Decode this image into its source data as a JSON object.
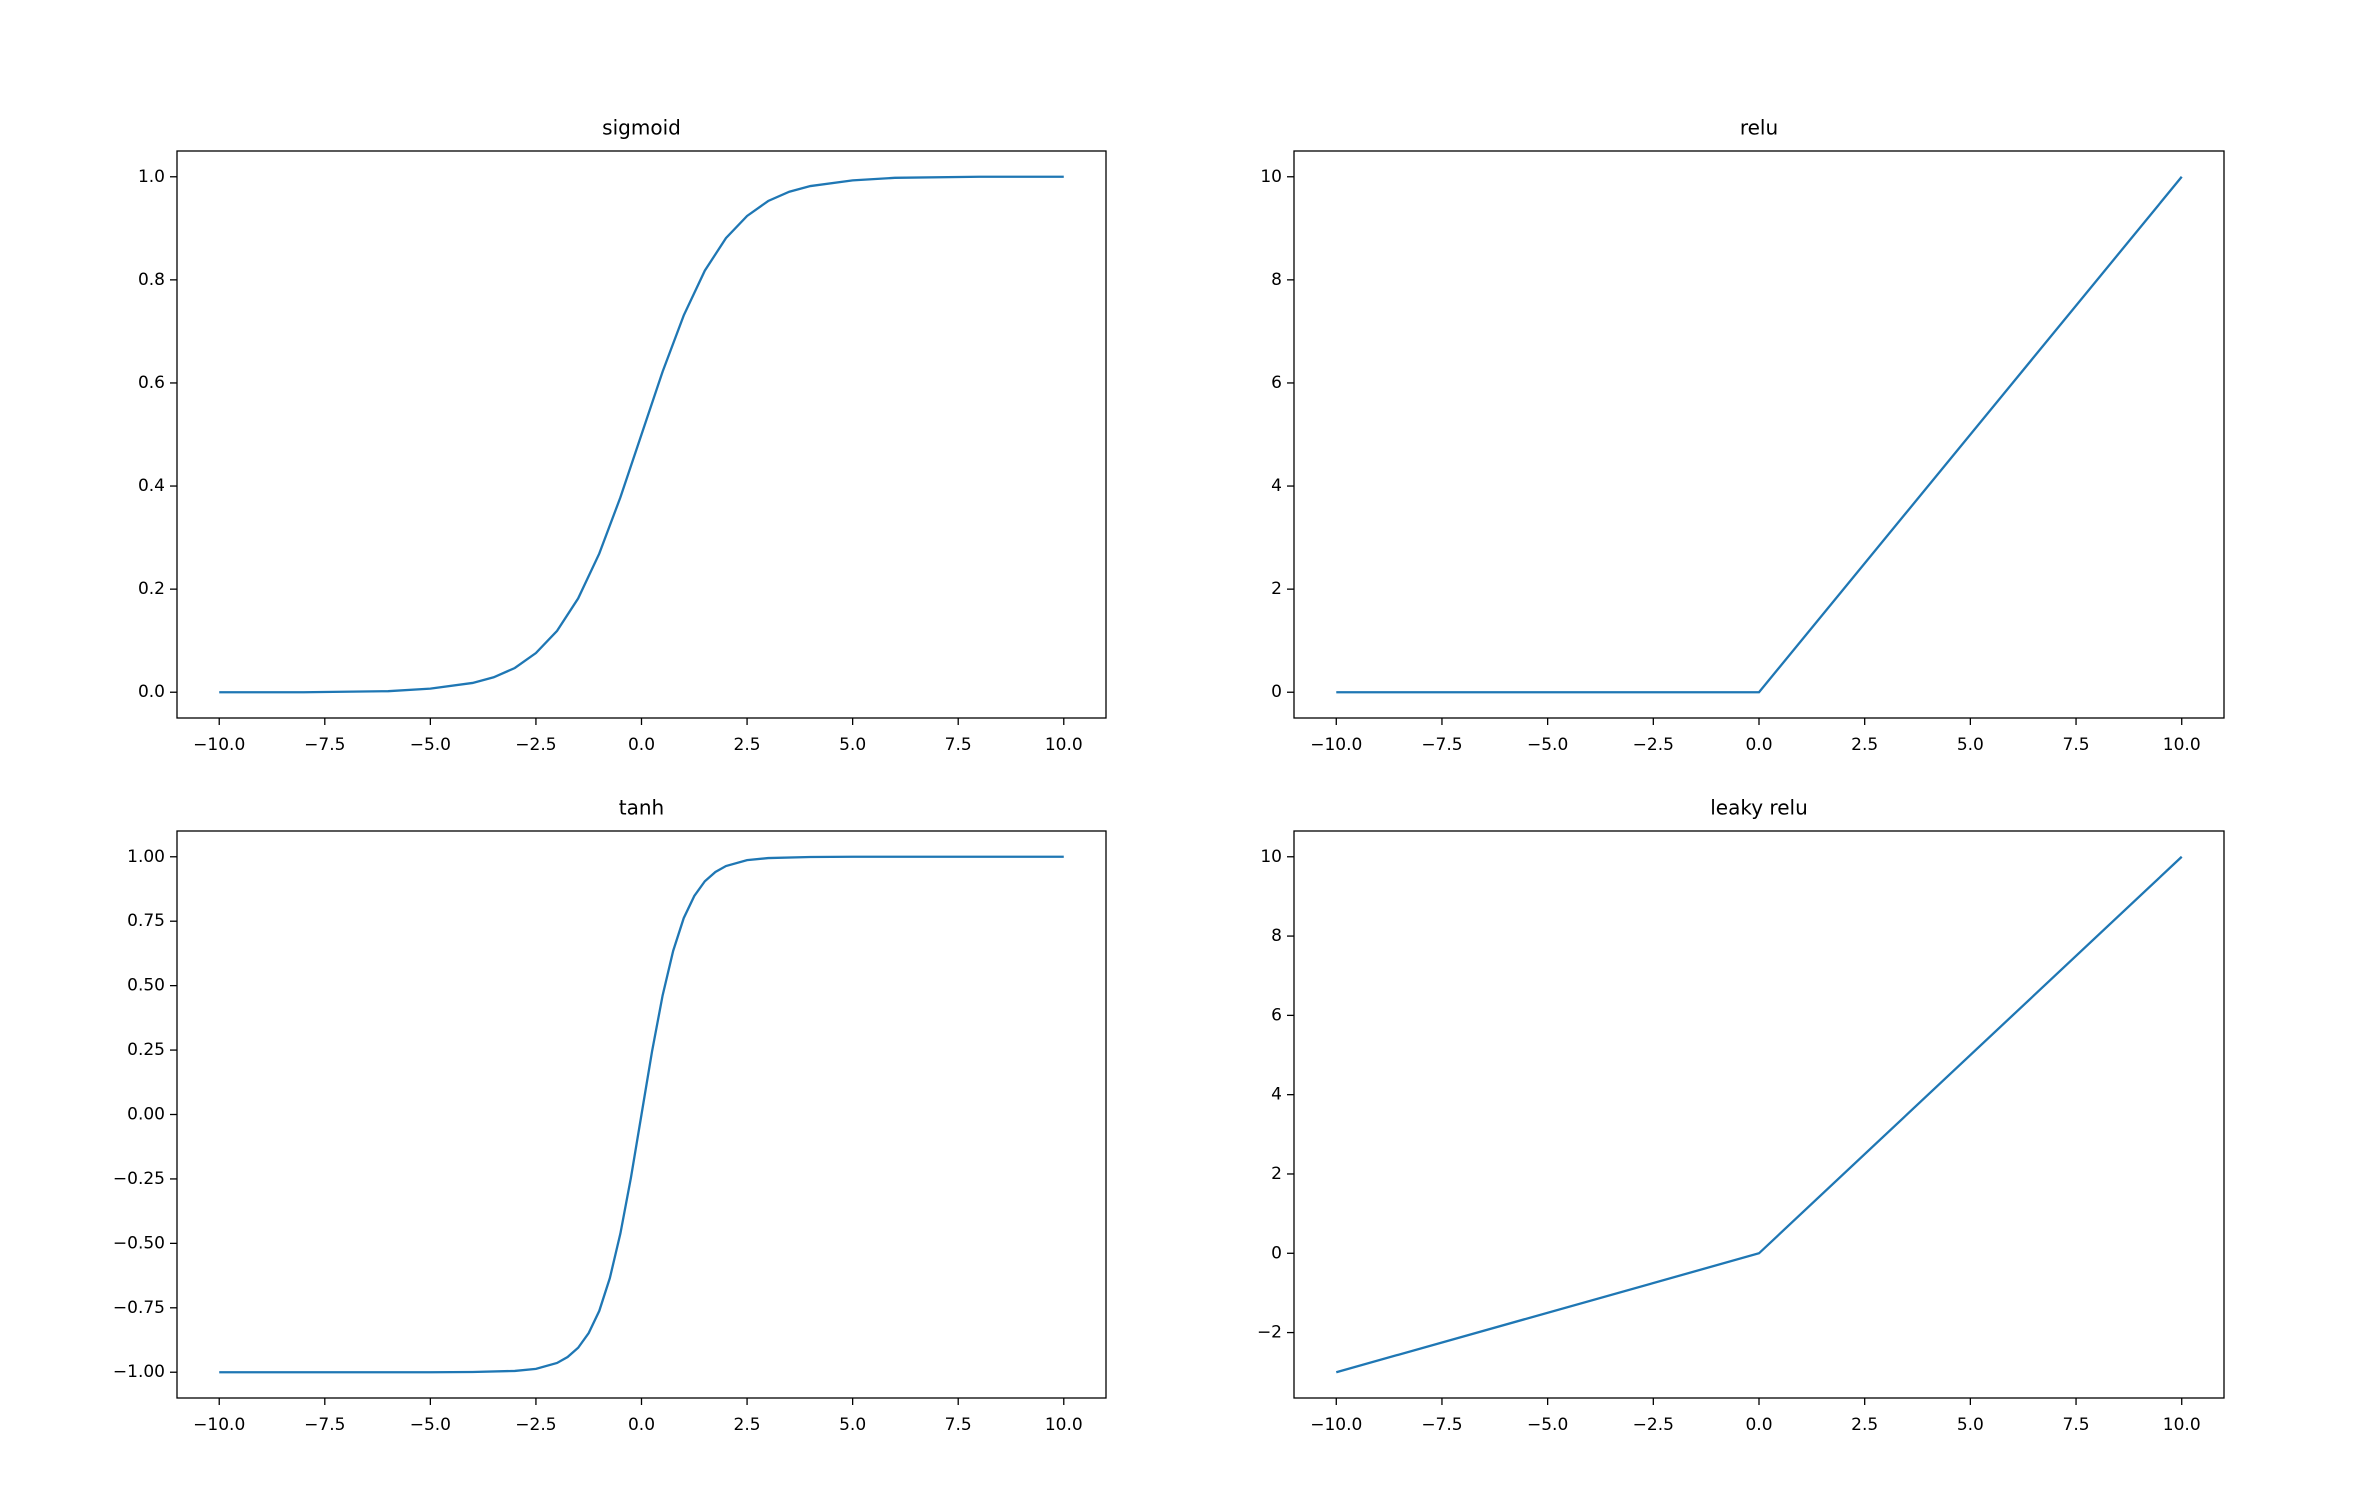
{
  "chart_data": [
    {
      "type": "line",
      "title": "sigmoid",
      "x": [
        -10,
        -8,
        -6,
        -5,
        -4,
        -3.5,
        -3,
        -2.5,
        -2,
        -1.5,
        -1,
        -0.5,
        0,
        0.5,
        1,
        1.5,
        2,
        2.5,
        3,
        3.5,
        4,
        5,
        6,
        8,
        10
      ],
      "series": [
        {
          "color": "#1f77b4",
          "values": [
            0.0,
            0.0,
            0.002,
            0.007,
            0.018,
            0.029,
            0.047,
            0.076,
            0.119,
            0.182,
            0.269,
            0.378,
            0.5,
            0.622,
            0.731,
            0.818,
            0.881,
            0.924,
            0.953,
            0.971,
            0.982,
            0.993,
            0.998,
            1.0,
            1.0
          ]
        }
      ],
      "xlim": [
        -11,
        11
      ],
      "xticks": [
        {
          "value": -10,
          "label": "−10.0"
        },
        {
          "value": -7.5,
          "label": "−7.5"
        },
        {
          "value": -5,
          "label": "−5.0"
        },
        {
          "value": -2.5,
          "label": "−2.5"
        },
        {
          "value": 0,
          "label": "0.0"
        },
        {
          "value": 2.5,
          "label": "2.5"
        },
        {
          "value": 5,
          "label": "5.0"
        },
        {
          "value": 7.5,
          "label": "7.5"
        },
        {
          "value": 10,
          "label": "10.0"
        }
      ],
      "ylim": [
        -0.05,
        1.05
      ],
      "yticks": [
        {
          "value": 0,
          "label": "0.0"
        },
        0.2,
        0.4,
        0.6,
        0.8,
        {
          "value": 1,
          "label": "1.0"
        }
      ]
    },
    {
      "type": "line",
      "title": "relu",
      "x": [
        -10,
        0,
        10
      ],
      "series": [
        {
          "color": "#1f77b4",
          "values": [
            0,
            0,
            10
          ]
        }
      ],
      "xlim": [
        -11,
        11
      ],
      "xticks": [
        {
          "value": -10,
          "label": "−10.0"
        },
        {
          "value": -7.5,
          "label": "−7.5"
        },
        {
          "value": -5,
          "label": "−5.0"
        },
        {
          "value": -2.5,
          "label": "−2.5"
        },
        {
          "value": 0,
          "label": "0.0"
        },
        {
          "value": 2.5,
          "label": "2.5"
        },
        {
          "value": 5,
          "label": "5.0"
        },
        {
          "value": 7.5,
          "label": "7.5"
        },
        {
          "value": 10,
          "label": "10.0"
        }
      ],
      "ylim": [
        -0.5,
        10.5
      ],
      "yticks": [
        0,
        2,
        4,
        6,
        8,
        10
      ]
    },
    {
      "type": "line",
      "title": "tanh",
      "x": [
        -10,
        -5,
        -4,
        -3,
        -2.5,
        -2,
        -1.75,
        -1.5,
        -1.25,
        -1,
        -0.75,
        -0.5,
        -0.25,
        0,
        0.25,
        0.5,
        0.75,
        1,
        1.25,
        1.5,
        1.75,
        2,
        2.5,
        3,
        4,
        5,
        10
      ],
      "series": [
        {
          "color": "#1f77b4",
          "values": [
            -1.0,
            -1.0,
            -0.999,
            -0.995,
            -0.987,
            -0.964,
            -0.941,
            -0.905,
            -0.848,
            -0.762,
            -0.635,
            -0.462,
            -0.245,
            0,
            0.245,
            0.462,
            0.635,
            0.762,
            0.848,
            0.905,
            0.941,
            0.964,
            0.987,
            0.995,
            0.999,
            1.0,
            1.0
          ]
        }
      ],
      "xlim": [
        -11,
        11
      ],
      "xticks": [
        {
          "value": -10,
          "label": "−10.0"
        },
        {
          "value": -7.5,
          "label": "−7.5"
        },
        {
          "value": -5,
          "label": "−5.0"
        },
        {
          "value": -2.5,
          "label": "−2.5"
        },
        {
          "value": 0,
          "label": "0.0"
        },
        {
          "value": 2.5,
          "label": "2.5"
        },
        {
          "value": 5,
          "label": "5.0"
        },
        {
          "value": 7.5,
          "label": "7.5"
        },
        {
          "value": 10,
          "label": "10.0"
        }
      ],
      "ylim": [
        -1.1,
        1.1
      ],
      "yticks": [
        {
          "value": -1,
          "label": "−1.00"
        },
        {
          "value": -0.75,
          "label": "−0.75"
        },
        {
          "value": -0.5,
          "label": "−0.50"
        },
        {
          "value": -0.25,
          "label": "−0.25"
        },
        {
          "value": 0,
          "label": "0.00"
        },
        0.25,
        {
          "value": 0.5,
          "label": "0.50"
        },
        0.75,
        {
          "value": 1,
          "label": "1.00"
        }
      ]
    },
    {
      "type": "line",
      "title": "leaky relu",
      "x": [
        -10,
        0,
        10
      ],
      "series": [
        {
          "color": "#1f77b4",
          "values": [
            -3,
            0,
            10
          ]
        }
      ],
      "xlim": [
        -11,
        11
      ],
      "xticks": [
        {
          "value": -10,
          "label": "−10.0"
        },
        {
          "value": -7.5,
          "label": "−7.5"
        },
        {
          "value": -5,
          "label": "−5.0"
        },
        {
          "value": -2.5,
          "label": "−2.5"
        },
        {
          "value": 0,
          "label": "0.0"
        },
        {
          "value": 2.5,
          "label": "2.5"
        },
        {
          "value": 5,
          "label": "5.0"
        },
        {
          "value": 7.5,
          "label": "7.5"
        },
        {
          "value": 10,
          "label": "10.0"
        }
      ],
      "ylim": [
        -3.65,
        10.65
      ],
      "yticks": [
        {
          "value": -2,
          "label": "−2"
        },
        0,
        2,
        4,
        6,
        8,
        10
      ]
    }
  ]
}
